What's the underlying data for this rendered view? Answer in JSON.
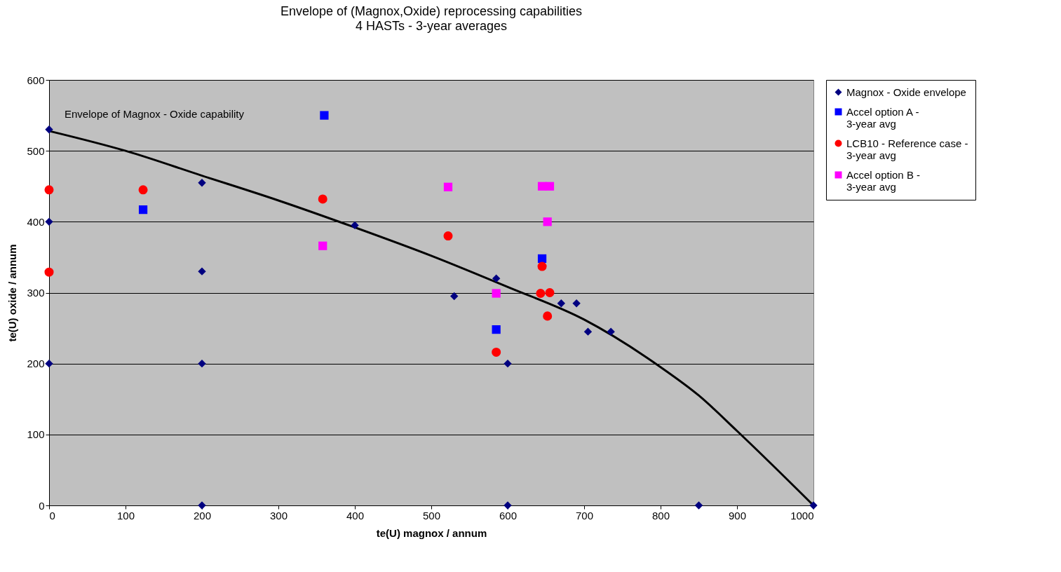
{
  "chart_data": {
    "type": "scatter",
    "title": "Envelope of (Magnox,Oxide) reprocessing capabilities",
    "subtitle": "4 HASTs - 3-year averages",
    "xlabel": "te(U) magnox / annum",
    "ylabel": "te(U) oxide / annum",
    "xlim": [
      0,
      1000
    ],
    "xticks": [
      0,
      100,
      200,
      300,
      400,
      500,
      600,
      700,
      800,
      900,
      1000
    ],
    "ylim": [
      0,
      600
    ],
    "yticks": [
      0,
      100,
      200,
      300,
      400,
      500,
      600
    ],
    "grid": "y",
    "legend": "right",
    "annotations": [
      "Envelope of Magnox - Oxide capability"
    ],
    "series": [
      {
        "name": "Magnox - Oxide envelope",
        "color": "#000080",
        "marker": "diamond",
        "x": [
          0,
          0,
          0,
          200,
          200,
          200,
          200,
          400,
          530,
          585,
          600,
          600,
          670,
          690,
          705,
          735,
          850,
          1000
        ],
        "values": [
          530,
          400,
          200,
          455,
          330,
          200,
          0,
          395,
          295,
          320,
          200,
          0,
          285,
          285,
          245,
          245,
          0,
          0
        ]
      },
      {
        "name": "Accel option A - 3-year avg",
        "color": "#0000ff",
        "marker": "square",
        "x": [
          360,
          123,
          522,
          645,
          585
        ],
        "values": [
          550,
          417,
          null,
          348,
          248
        ]
      },
      {
        "name": "LCB10 - Reference case - 3-year avg",
        "color": "#ff0000",
        "marker": "circle",
        "x": [
          0,
          0,
          123,
          358,
          522,
          645,
          643,
          655,
          652,
          585
        ],
        "values": [
          445,
          329,
          445,
          432,
          380,
          337,
          299,
          300,
          267,
          216
        ]
      },
      {
        "name": "Accel option B - 3-year avg",
        "color": "#ff00ff",
        "marker": "square",
        "x": [
          358,
          522,
          645,
          655,
          652,
          585
        ],
        "values": [
          366,
          449,
          450,
          450,
          400,
          299
        ]
      },
      {
        "type": "line",
        "color": "#000000",
        "marker": "none",
        "x": [
          0,
          100,
          200,
          300,
          400,
          500,
          600,
          700,
          800,
          850,
          900,
          1000
        ],
        "values": [
          528,
          500,
          465,
          430,
          392,
          352,
          308,
          262,
          195,
          155,
          105,
          0
        ]
      }
    ]
  }
}
